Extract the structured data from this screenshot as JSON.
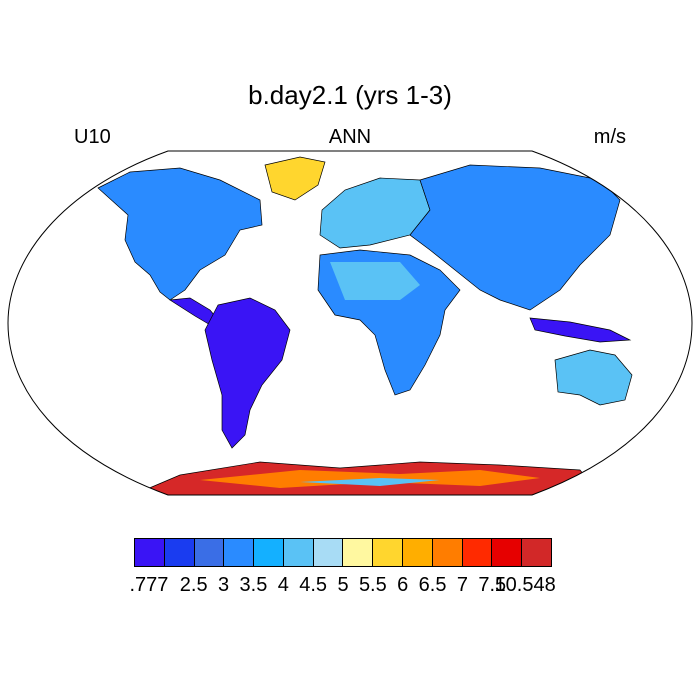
{
  "title": "b.day2.1 (yrs 1-3)",
  "left_label": "U10",
  "center_label": "ANN",
  "right_label": "m/s",
  "map": {
    "projection": "robinson",
    "variable": "U10",
    "season": "ANN",
    "units": "m/s",
    "field_description": "annual mean 10 m wind speed over land",
    "regions": [
      {
        "name": "land-general",
        "color": "#2a8bff"
      },
      {
        "name": "amazon-low",
        "color": "#3a14f5"
      },
      {
        "name": "antarctica-high",
        "color": "#d62828"
      }
    ]
  },
  "colorbar": {
    "colors": [
      "#3a14f5",
      "#1a3cf0",
      "#3a6ee6",
      "#2a8bff",
      "#14b0ff",
      "#5ac2f5",
      "#a8dcf5",
      "#fff8a0",
      "#ffd62e",
      "#ffae00",
      "#ff7d00",
      "#ff2a00",
      "#e60000",
      "#d22828"
    ],
    "labels": [
      ".777",
      "2.5",
      "3",
      "3.5",
      "4",
      "4.5",
      "5",
      "5.5",
      "6",
      "6.5",
      "7",
      "7.5",
      "10.548"
    ]
  }
}
